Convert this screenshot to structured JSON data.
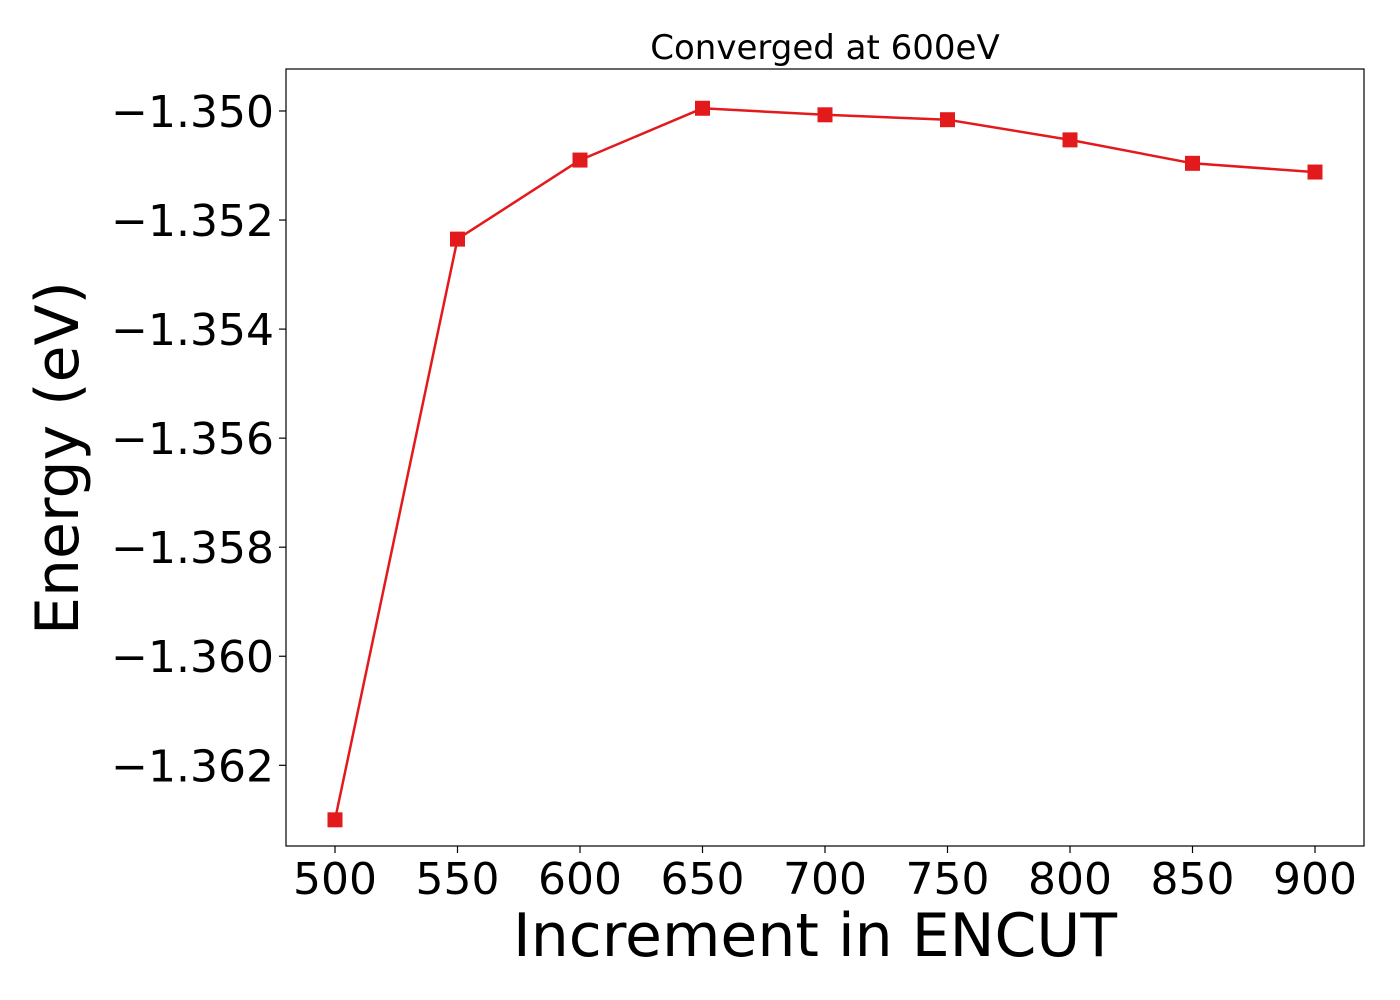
{
  "chart_data": {
    "type": "line",
    "title": "Converged at 600eV",
    "xlabel": "Increment in ENCUT",
    "ylabel": "Energy (eV)",
    "x": [
      500,
      550,
      600,
      650,
      700,
      750,
      800,
      850,
      900
    ],
    "series": [
      {
        "values": [
          -1.363,
          -1.35235,
          -1.3509,
          -1.34995,
          -1.35007,
          -1.35016,
          -1.35053,
          -1.35096,
          -1.35112
        ],
        "color": "#e31a1c",
        "marker": "square"
      }
    ],
    "xticks": [
      500,
      550,
      600,
      650,
      700,
      750,
      800,
      850,
      900
    ],
    "xtick_labels": [
      "500",
      "550",
      "600",
      "650",
      "700",
      "750",
      "800",
      "850",
      "900"
    ],
    "yticks": [
      -1.35,
      -1.352,
      -1.354,
      -1.356,
      -1.358,
      -1.36,
      -1.362
    ],
    "ytick_labels": [
      "−1.350",
      "−1.352",
      "−1.354",
      "−1.356",
      "−1.358",
      "−1.360",
      "−1.362"
    ],
    "xlim": [
      480,
      920
    ],
    "ylim": [
      -1.36348,
      -1.34923
    ],
    "grid": false,
    "legend": false
  }
}
